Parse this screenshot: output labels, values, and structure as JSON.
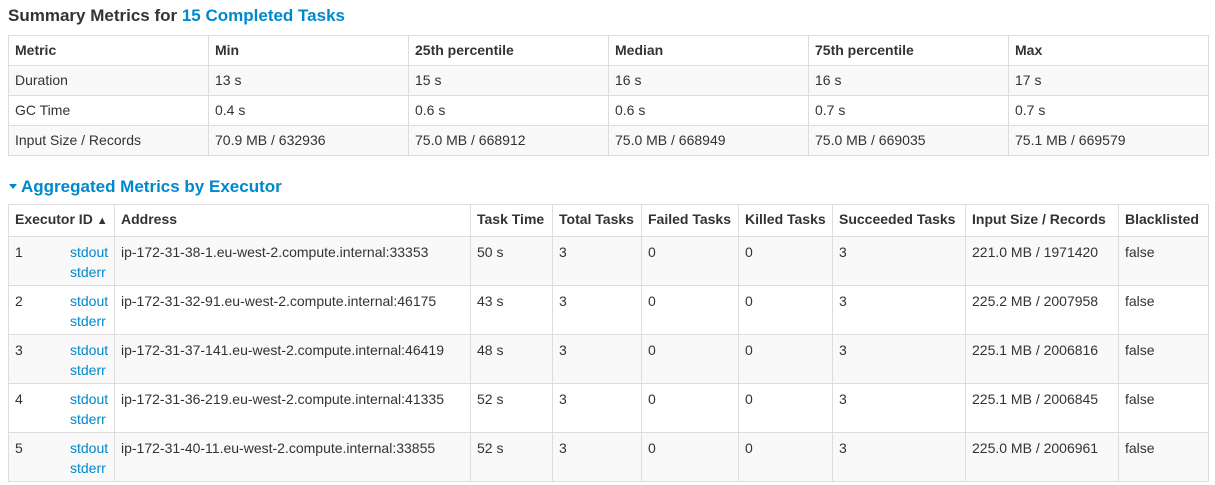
{
  "summary": {
    "title_prefix": "Summary Metrics for ",
    "title_link": "15 Completed Tasks",
    "headers": [
      "Metric",
      "Min",
      "25th percentile",
      "Median",
      "75th percentile",
      "Max"
    ],
    "rows": [
      [
        "Duration",
        "13 s",
        "15 s",
        "16 s",
        "16 s",
        "17 s"
      ],
      [
        "GC Time",
        "0.4 s",
        "0.6 s",
        "0.6 s",
        "0.7 s",
        "0.7 s"
      ],
      [
        "Input Size / Records",
        "70.9 MB / 632936",
        "75.0 MB / 668912",
        "75.0 MB / 668949",
        "75.0 MB / 669035",
        "75.1 MB / 669579"
      ]
    ]
  },
  "aggregated": {
    "title": "Aggregated Metrics by Executor",
    "sort_indicator": "▲",
    "headers": [
      "Executor ID",
      "Address",
      "Task Time",
      "Total Tasks",
      "Failed Tasks",
      "Killed Tasks",
      "Succeeded Tasks",
      "Input Size / Records",
      "Blacklisted"
    ],
    "log_labels": {
      "stdout": "stdout",
      "stderr": "stderr"
    },
    "rows": [
      {
        "id": "1",
        "address": "ip-172-31-38-1.eu-west-2.compute.internal:33353",
        "task_time": "50 s",
        "total": "3",
        "failed": "0",
        "killed": "0",
        "succeeded": "3",
        "input": "221.0 MB / 1971420",
        "blacklisted": "false"
      },
      {
        "id": "2",
        "address": "ip-172-31-32-91.eu-west-2.compute.internal:46175",
        "task_time": "43 s",
        "total": "3",
        "failed": "0",
        "killed": "0",
        "succeeded": "3",
        "input": "225.2 MB / 2007958",
        "blacklisted": "false"
      },
      {
        "id": "3",
        "address": "ip-172-31-37-141.eu-west-2.compute.internal:46419",
        "task_time": "48 s",
        "total": "3",
        "failed": "0",
        "killed": "0",
        "succeeded": "3",
        "input": "225.1 MB / 2006816",
        "blacklisted": "false"
      },
      {
        "id": "4",
        "address": "ip-172-31-36-219.eu-west-2.compute.internal:41335",
        "task_time": "52 s",
        "total": "3",
        "failed": "0",
        "killed": "0",
        "succeeded": "3",
        "input": "225.1 MB / 2006845",
        "blacklisted": "false"
      },
      {
        "id": "5",
        "address": "ip-172-31-40-11.eu-west-2.compute.internal:33855",
        "task_time": "52 s",
        "total": "3",
        "failed": "0",
        "killed": "0",
        "succeeded": "3",
        "input": "225.0 MB / 2006961",
        "blacklisted": "false"
      }
    ]
  }
}
